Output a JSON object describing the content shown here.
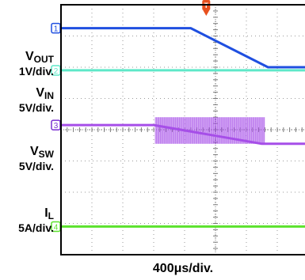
{
  "chart_data": {
    "type": "line",
    "x_unit_per_div": "400µs",
    "divisions": 10,
    "ylim": [
      0,
      8
    ],
    "grid": true,
    "trigger_marker": "T",
    "trigger_div": 4.7,
    "channels": [
      {
        "id": "1",
        "name": "V",
        "subscript": "OUT",
        "scale": "1V/div.",
        "color": "#1f4fe0",
        "marker_color": "#1f4fe0",
        "points": [
          [
            0,
            7.25
          ],
          [
            4.2,
            7.25
          ],
          [
            6.7,
            6.0
          ],
          [
            10,
            6.0
          ]
        ]
      },
      {
        "id": "2",
        "name": "V",
        "subscript": "IN",
        "scale": "5V/div.",
        "color": "#5ee8c8",
        "marker_color": "#5ee8c8",
        "points": [
          [
            0,
            5.9
          ],
          [
            10,
            5.9
          ]
        ]
      },
      {
        "id": "3",
        "name": "V",
        "subscript": "SW",
        "scale": "5V/div.",
        "color": "#a64ee8",
        "marker_color": "#7a2fd0",
        "points": [
          [
            0,
            4.15
          ],
          [
            3.0,
            4.15
          ],
          [
            6.5,
            3.55
          ],
          [
            10,
            3.55
          ]
        ],
        "switching": {
          "from": 3.05,
          "to": 6.6,
          "high": 4.4,
          "low": 3.55
        }
      },
      {
        "id": "4",
        "name": "I",
        "subscript": "L",
        "scale": "5A/div.",
        "color": "#5ce22e",
        "marker_color": "#5ce22e",
        "points": [
          [
            0,
            0.9
          ],
          [
            10,
            0.9
          ]
        ]
      }
    ]
  },
  "labels": {
    "vout": {
      "main": "V",
      "sub": "OUT",
      "scale": "1V/div."
    },
    "vin": {
      "main": "V",
      "sub": "IN",
      "scale": "5V/div."
    },
    "vsw": {
      "main": "V",
      "sub": "SW",
      "scale": "5V/div."
    },
    "il": {
      "main": "I",
      "sub": "L",
      "scale": "5A/div."
    },
    "x_scale": "400μs/div."
  }
}
